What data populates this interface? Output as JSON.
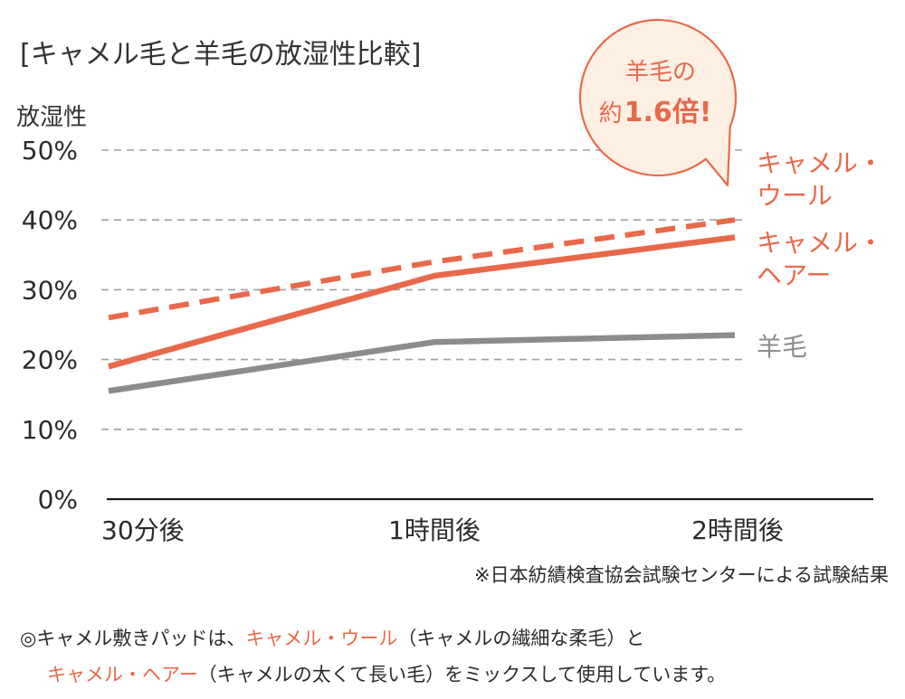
{
  "chart_data": {
    "type": "line",
    "title": "[キャメル毛と羊毛の放湿性比較]",
    "ylabel": "放湿性",
    "ylim": [
      0,
      50
    ],
    "yticks": [
      0,
      10,
      20,
      30,
      40,
      50
    ],
    "ytick_labels": [
      "0%",
      "10%",
      "20%",
      "30%",
      "40%",
      "50%"
    ],
    "categories": [
      "30分後",
      "1時間後",
      "2時間後"
    ],
    "grid": true,
    "series": [
      {
        "name": "キャメル・ウール",
        "name_lines": [
          "キャメル・",
          "ウール"
        ],
        "values": [
          26,
          34,
          40
        ],
        "style": "dashed",
        "color": "#e8694a"
      },
      {
        "name": "キャメル・ヘアー",
        "name_lines": [
          "キャメル・",
          "ヘアー"
        ],
        "values": [
          19,
          32,
          37.5
        ],
        "style": "solid",
        "color": "#e8694a"
      },
      {
        "name": "羊毛",
        "name_lines": [
          "羊毛"
        ],
        "values": [
          15.5,
          22.5,
          23.5
        ],
        "style": "solid",
        "color": "#8a8c8e"
      }
    ],
    "annotation": {
      "line1": "羊毛の",
      "line2_prefix": "約",
      "line2_value": "1.6倍!"
    },
    "note": "※日本紡績検査協会試験センターによる試験結果"
  },
  "footer": {
    "line1": {
      "a": "◎キャメル敷きパッドは、",
      "b": "キャメル・ウール",
      "c": "（キャメルの繊細な柔毛）と"
    },
    "line2": {
      "a": "キャメル・ヘアー",
      "b": "（キャメルの太くて長い毛）をミックスして使用しています。"
    }
  },
  "colors": {
    "accent": "#e8694a",
    "gray": "#8a8c8e",
    "grid": "#a0a0a0",
    "axis": "#1a1a1a",
    "callout_fill": "#fdf0e3"
  }
}
